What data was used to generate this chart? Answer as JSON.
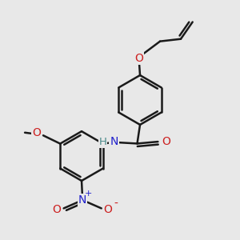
{
  "bg_color": "#e8e8e8",
  "atom_colors": {
    "C": "#1a1a1a",
    "H": "#4a8a8a",
    "N": "#2020cc",
    "O": "#cc2020"
  },
  "bond_color": "#1a1a1a",
  "bond_width": 1.8,
  "figsize": [
    3.0,
    3.0
  ],
  "dpi": 100,
  "xlim": [
    0,
    10
  ],
  "ylim": [
    0,
    10
  ]
}
